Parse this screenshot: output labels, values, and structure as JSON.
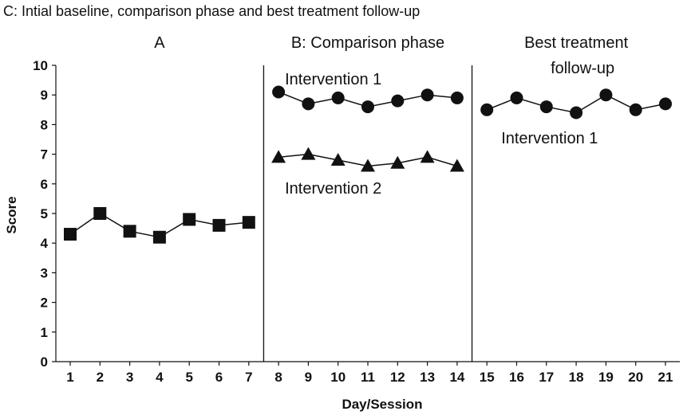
{
  "figure_title": "C: Intial baseline, comparison phase and best treatment follow-up",
  "chart_data": {
    "type": "line",
    "xlabel": "Day/Session",
    "ylabel": "Score",
    "xlim": [
      1,
      21
    ],
    "ylim": [
      0,
      10
    ],
    "x_ticks": [
      1,
      2,
      3,
      4,
      5,
      6,
      7,
      8,
      9,
      10,
      11,
      12,
      13,
      14,
      15,
      16,
      17,
      18,
      19,
      20,
      21
    ],
    "y_ticks": [
      0,
      1,
      2,
      3,
      4,
      5,
      6,
      7,
      8,
      9,
      10
    ],
    "grid": false,
    "phases": [
      {
        "label": "A",
        "label_lines": [
          "A"
        ],
        "x_range": [
          1,
          7
        ]
      },
      {
        "label": "B: Comparison phase",
        "label_lines": [
          "B: Comparison phase"
        ],
        "x_range": [
          8,
          14
        ]
      },
      {
        "label": "Best treatment follow-up",
        "label_lines": [
          "Best treatment",
          "follow-up"
        ],
        "x_range": [
          15,
          21
        ]
      }
    ],
    "phase_change_lines": [
      7.5,
      14.5
    ],
    "series": [
      {
        "segment": "baseline",
        "marker": "square",
        "color": "#111111",
        "x": [
          1,
          2,
          3,
          4,
          5,
          6,
          7
        ],
        "y": [
          4.3,
          5.0,
          4.4,
          4.2,
          4.8,
          4.6,
          4.7
        ]
      },
      {
        "segment": "comparison",
        "name": "Intervention 1",
        "marker": "circle",
        "color": "#111111",
        "x": [
          8,
          9,
          10,
          11,
          12,
          13,
          14
        ],
        "y": [
          9.1,
          8.7,
          8.9,
          8.6,
          8.8,
          9.0,
          8.9
        ]
      },
      {
        "segment": "comparison",
        "name": "Intervention 2",
        "marker": "triangle",
        "color": "#111111",
        "x": [
          8,
          9,
          10,
          11,
          12,
          13,
          14
        ],
        "y": [
          6.9,
          7.0,
          6.8,
          6.6,
          6.7,
          6.9,
          6.6
        ]
      },
      {
        "segment": "follow-up",
        "name": "Intervention 1",
        "marker": "circle",
        "color": "#111111",
        "x": [
          15,
          16,
          17,
          18,
          19,
          20,
          21
        ],
        "y": [
          8.5,
          8.9,
          8.6,
          8.4,
          9.0,
          8.5,
          8.7
        ]
      }
    ],
    "annotations": [
      {
        "text": "Intervention 1",
        "phase": "B: Comparison phase",
        "position": "above series"
      },
      {
        "text": "Intervention 2",
        "phase": "B: Comparison phase",
        "position": "below series"
      },
      {
        "text": "Intervention 1",
        "phase": "Best treatment follow-up",
        "position": "below series"
      }
    ]
  }
}
